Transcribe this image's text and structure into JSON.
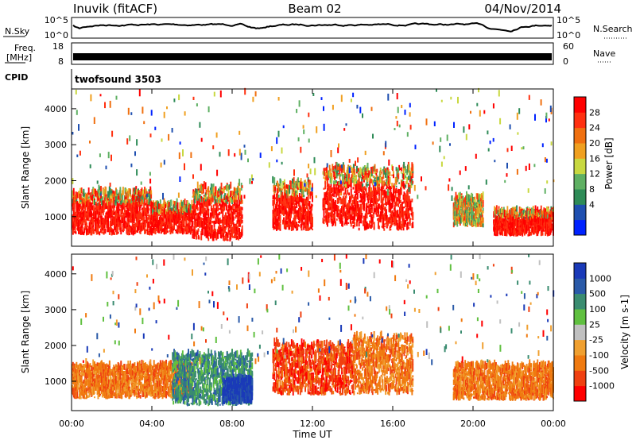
{
  "header": {
    "station": "Inuvik (fitACF)",
    "beam": "Beam 02",
    "date": "04/Nov/2014"
  },
  "panels": {
    "nsky": {
      "label": "N.Sky",
      "left_ticks": [
        "10^5",
        "10^0"
      ],
      "right_label": "N.Search",
      "right_ticks": [
        "10^5",
        "10^0"
      ]
    },
    "freq": {
      "label_line1": "Freq.",
      "label_line2": "[MHz]",
      "left_ticks": [
        "18",
        "8"
      ],
      "right_label": "Nave",
      "right_ticks": [
        "60",
        "0"
      ]
    },
    "cpid": {
      "label": "CPID",
      "value": "twofsound 3503"
    }
  },
  "colors": {
    "power": [
      "#0022ff",
      "#1f4fb0",
      "#2e8b57",
      "#5fb063",
      "#c8d840",
      "#f0a020",
      "#f07010",
      "#ff3010",
      "#ff0000"
    ],
    "velocity": [
      "#ff0000",
      "#f04010",
      "#f07a10",
      "#f0a030",
      "#c0c0c0",
      "#60c040",
      "#3a8c70",
      "#2a5aa8",
      "#1a3ab8"
    ],
    "trace": "#000000"
  },
  "chart_data": [
    {
      "type": "heatmap",
      "name": "power",
      "xlabel": "",
      "ylabel": "Slant Range [km]",
      "xlim": [
        "00:00",
        "24:00"
      ],
      "ylim": [
        180,
        4550
      ],
      "yticks": [
        "1000",
        "2000",
        "3000",
        "4000"
      ],
      "colorbar": {
        "label": "Power [dB]",
        "ticks": [
          "28",
          "24",
          "20",
          "16",
          "12",
          "8",
          "4"
        ]
      },
      "features": [
        {
          "start": "00:00",
          "end": "04:00",
          "range": [
            480,
            1650
          ],
          "level": "high"
        },
        {
          "start": "04:00",
          "end": "06:00",
          "range": [
            500,
            1300
          ],
          "level": "high"
        },
        {
          "start": "06:00",
          "end": "08:30",
          "range": [
            300,
            1800
          ],
          "level": "high"
        },
        {
          "start": "10:00",
          "end": "12:00",
          "range": [
            600,
            1900
          ],
          "level": "high"
        },
        {
          "start": "12:30",
          "end": "14:00",
          "range": [
            700,
            2300
          ],
          "level": "high"
        },
        {
          "start": "14:00",
          "end": "17:00",
          "range": [
            600,
            2300
          ],
          "level": "high"
        },
        {
          "start": "19:00",
          "end": "20:30",
          "range": [
            700,
            1500
          ],
          "level": "medium"
        },
        {
          "start": "21:00",
          "end": "24:00",
          "range": [
            450,
            1100
          ],
          "level": "high"
        }
      ]
    },
    {
      "type": "heatmap",
      "name": "velocity",
      "xlabel": "Time UT",
      "ylabel": "Slant Range [km]",
      "xlim": [
        "00:00",
        "24:00"
      ],
      "ylim": [
        180,
        4550
      ],
      "xticks": [
        "00:00",
        "04:00",
        "08:00",
        "12:00",
        "16:00",
        "20:00",
        "00:00"
      ],
      "yticks": [
        "1000",
        "2000",
        "3000",
        "4000"
      ],
      "colorbar": {
        "label": "Velocity [m s-1]",
        "ticks": [
          "1000",
          "500",
          "100",
          "25",
          "-25",
          "-100",
          "-500",
          "-1000"
        ]
      },
      "features": [
        {
          "start": "00:00",
          "end": "06:00",
          "range": [
            500,
            1400
          ],
          "level": "-100"
        },
        {
          "start": "05:00",
          "end": "09:00",
          "range": [
            300,
            1700
          ],
          "level": "100"
        },
        {
          "start": "07:30",
          "end": "09:00",
          "range": [
            350,
            1000
          ],
          "level": "1000"
        },
        {
          "start": "10:00",
          "end": "14:00",
          "range": [
            600,
            2000
          ],
          "level": "-500"
        },
        {
          "start": "14:00",
          "end": "17:00",
          "range": [
            600,
            2200
          ],
          "level": "-100"
        },
        {
          "start": "19:00",
          "end": "24:00",
          "range": [
            450,
            1400
          ],
          "level": "-100"
        }
      ]
    }
  ]
}
